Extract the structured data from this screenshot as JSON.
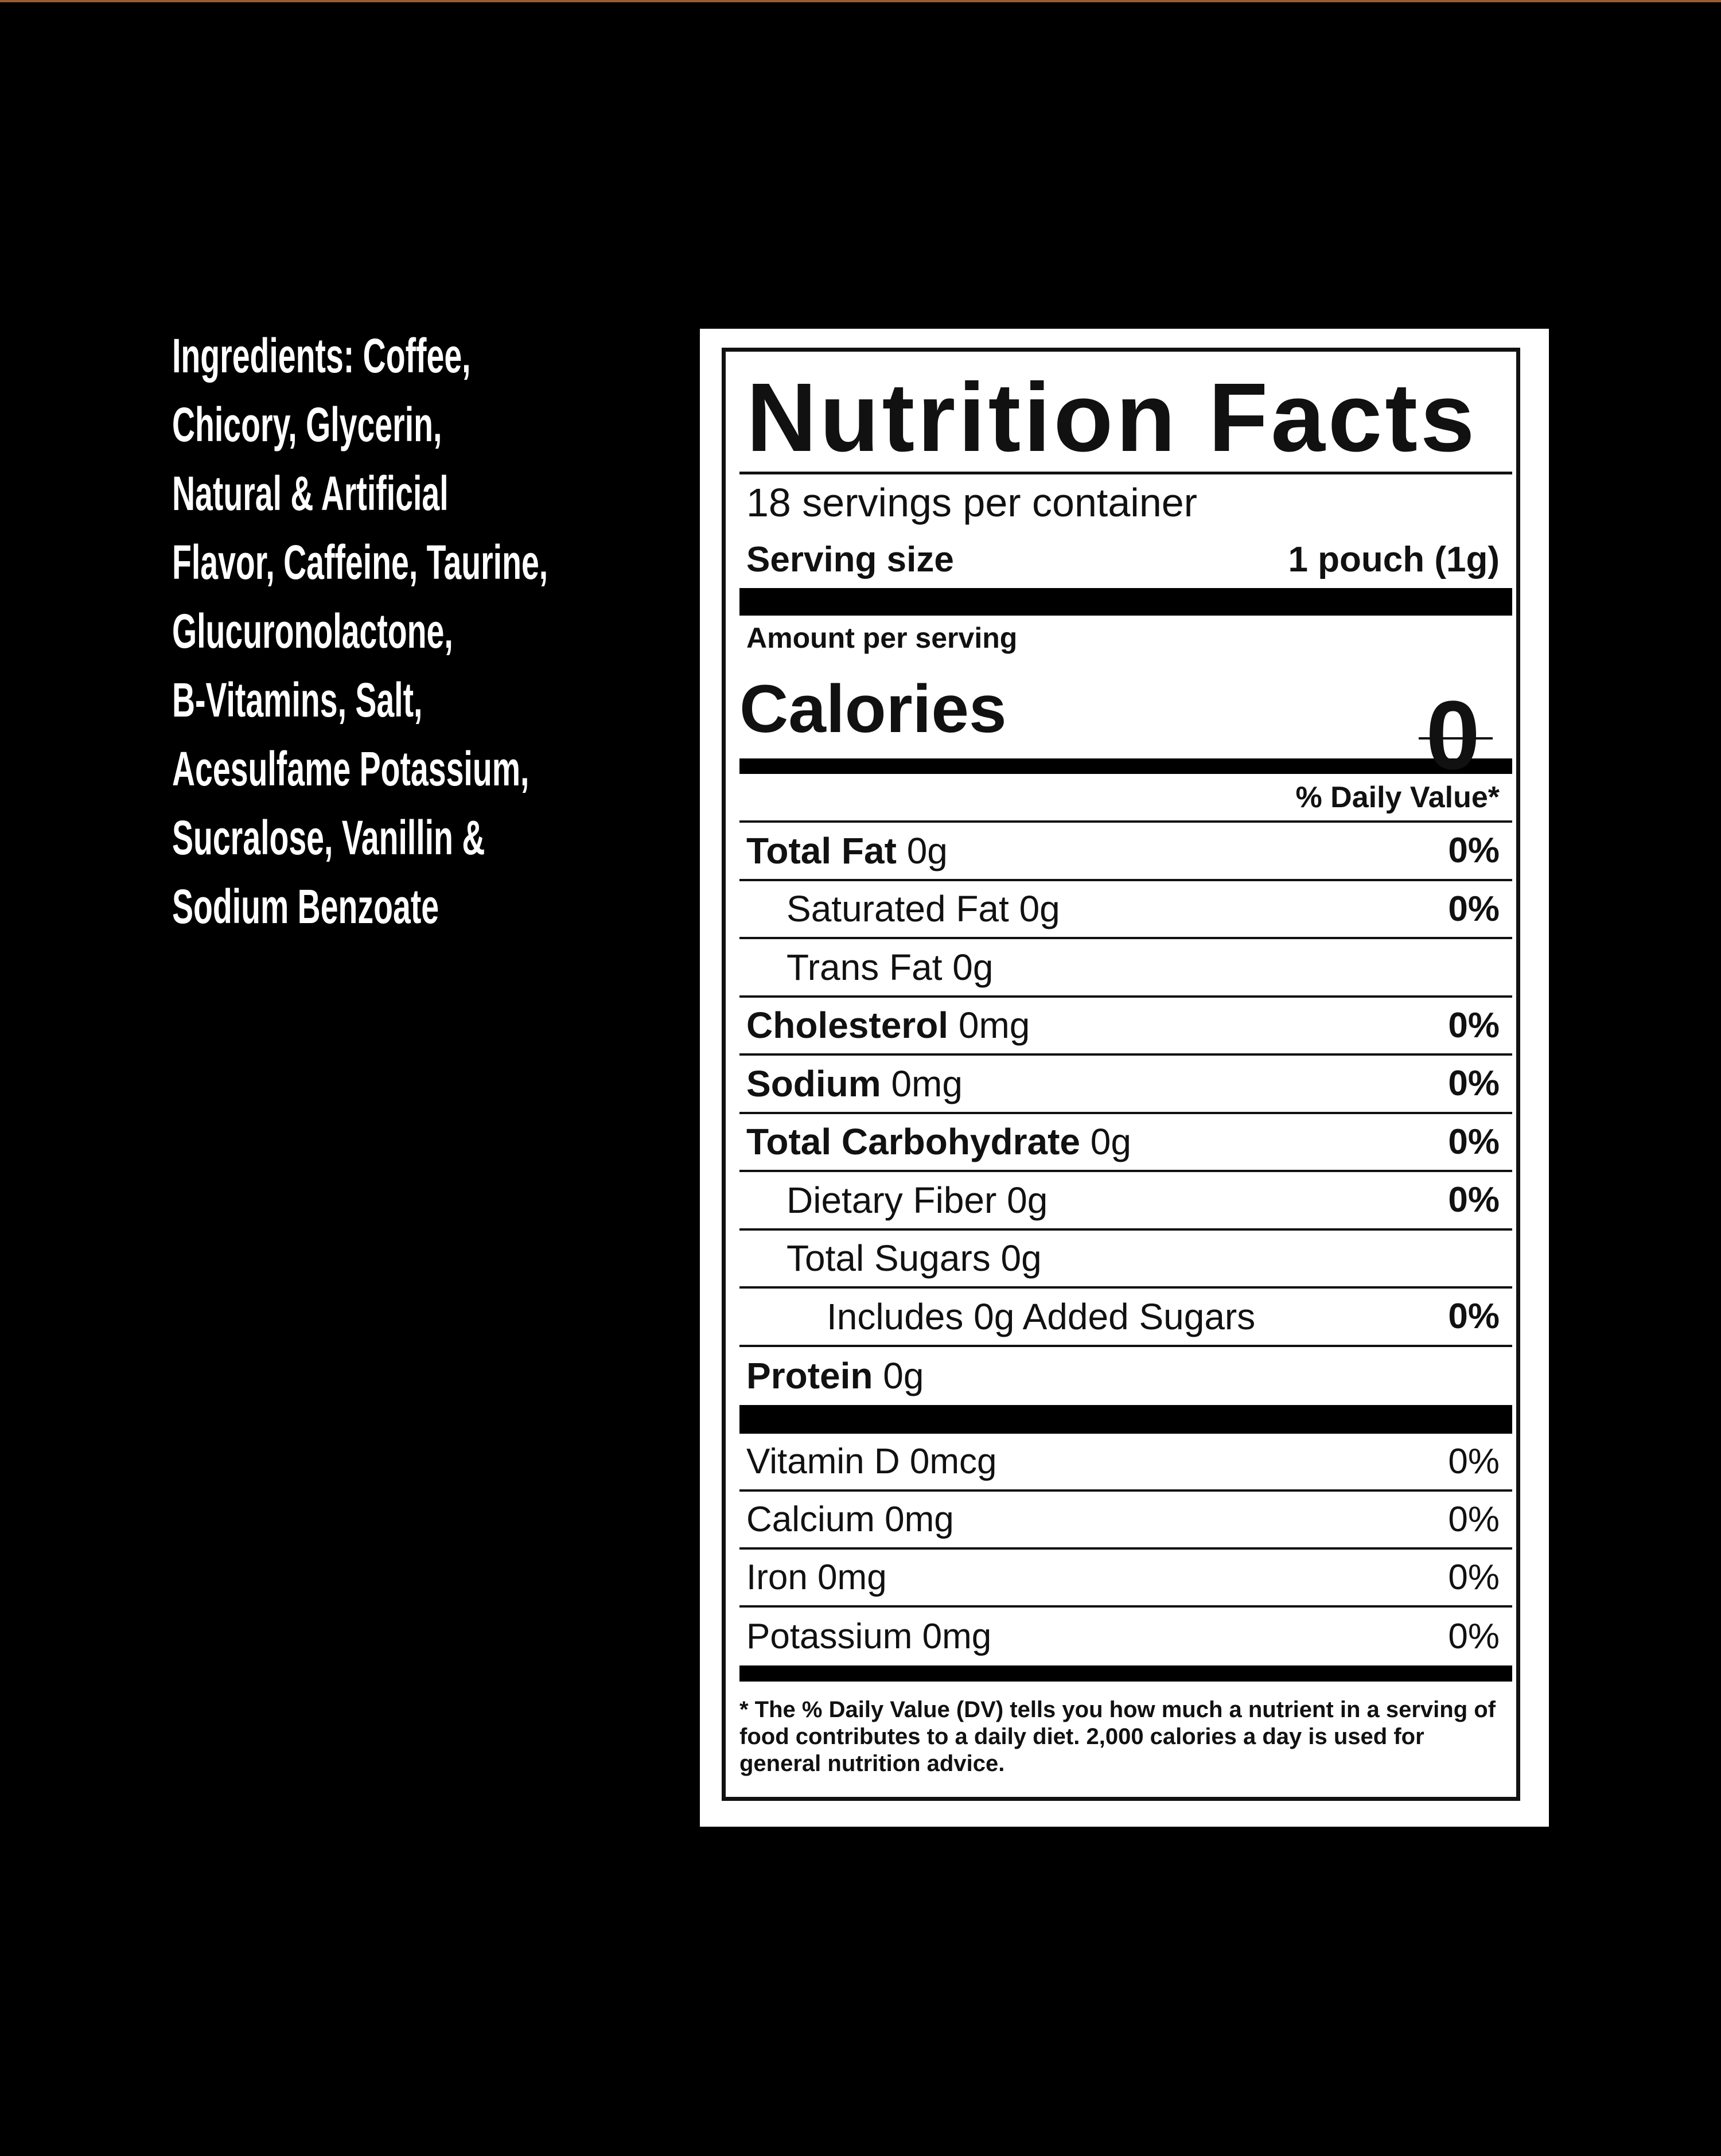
{
  "accent_color": "#9a5c34",
  "ingredients": [
    "Ingredients: Coffee,",
    "Chicory, Glycerin,",
    "Natural & Artificial",
    "Flavor, Caffeine, Taurine,",
    "Glucuronolactone,",
    "B-Vitamins, Salt,",
    "Acesulfame Potassium,",
    "Sucralose, Vanillin &",
    "Sodium Benzoate"
  ],
  "label": {
    "title": "Nutrition Facts",
    "servings": "18 servings per container",
    "serving_size_label": "Serving size",
    "serving_size_value": "1 pouch (1g)",
    "amount_per_serving": "Amount per serving",
    "calories_label": "Calories",
    "calories_value": "0",
    "dv_header": "% Daily Value*",
    "nutrients": [
      {
        "name": "Total Fat",
        "amount": "0g",
        "dv": "0%"
      },
      {
        "name": "Saturated Fat",
        "amount": "0g",
        "dv": "0%"
      },
      {
        "name": "Trans Fat",
        "amount": "0g",
        "dv": ""
      },
      {
        "name": "Cholesterol",
        "amount": "0mg",
        "dv": "0%"
      },
      {
        "name": "Sodium",
        "amount": "0mg",
        "dv": "0%"
      },
      {
        "name": "Total Carbohydrate",
        "amount": "0g",
        "dv": "0%"
      },
      {
        "name": "Dietary Fiber",
        "amount": "0g",
        "dv": "0%"
      },
      {
        "name": "Total Sugars",
        "amount": "0g",
        "dv": ""
      },
      {
        "name": "Includes 0g Added Sugars",
        "amount": "",
        "dv": "0%"
      },
      {
        "name": "Protein",
        "amount": "0g",
        "dv": ""
      }
    ],
    "vitamins": [
      {
        "name": "Vitamin D 0mcg",
        "dv": "0%"
      },
      {
        "name": "Calcium 0mg",
        "dv": "0%"
      },
      {
        "name": "Iron 0mg",
        "dv": "0%"
      },
      {
        "name": "Potassium 0mg",
        "dv": "0%"
      }
    ],
    "footnote": "* The % Daily Value (DV) tells you how much a nutrient in a serving of food contributes to a daily diet. 2,000 calories a day is used for general nutrition advice."
  }
}
